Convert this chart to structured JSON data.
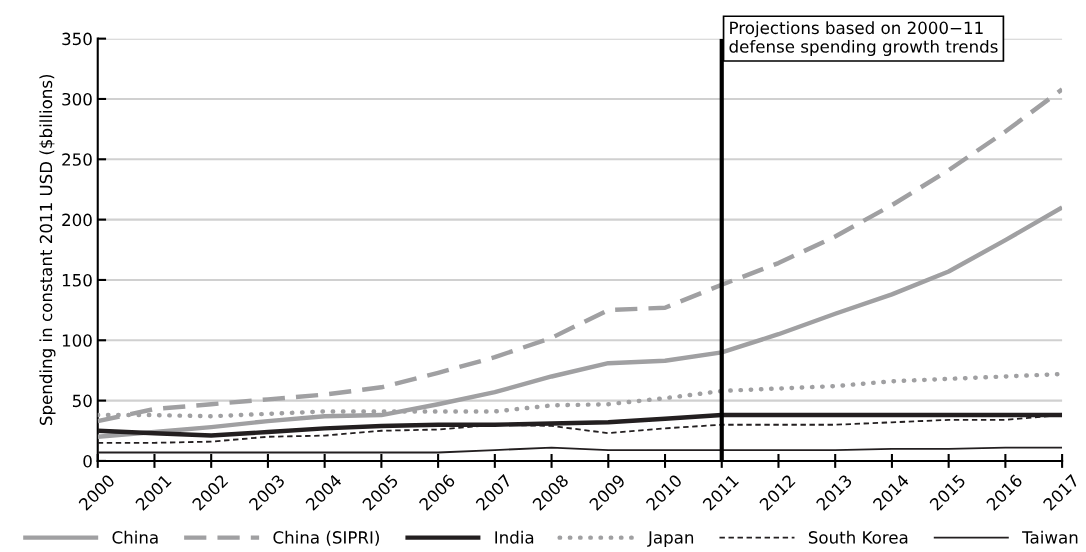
{
  "chart_data": {
    "type": "line",
    "ylabel": "Spending in constant 2011 USD ($billions)",
    "x": [
      2000,
      2001,
      2002,
      2003,
      2004,
      2005,
      2006,
      2007,
      2008,
      2009,
      2010,
      2011,
      2012,
      2013,
      2014,
      2015,
      2016,
      2017
    ],
    "xlim": [
      2000,
      2017
    ],
    "xticks": [
      2000,
      2001,
      2002,
      2003,
      2004,
      2005,
      2006,
      2007,
      2008,
      2009,
      2010,
      2011,
      2012,
      2013,
      2014,
      2015,
      2016,
      2017
    ],
    "ylim": [
      0,
      350
    ],
    "yticks": [
      0,
      50,
      100,
      150,
      200,
      250,
      300,
      350
    ],
    "grid": "y",
    "legend": "bottom",
    "series": [
      {
        "name": "China",
        "color": "#a0a0a2",
        "line_style": "solid",
        "values": [
          20,
          24,
          28,
          33,
          37,
          38,
          47,
          57,
          70,
          81,
          83,
          90,
          105,
          122,
          138,
          157,
          183,
          210
        ]
      },
      {
        "name": "China (SIPRI)",
        "color": "#a0a0a2",
        "line_style": "dashed",
        "values": [
          33,
          43,
          47,
          51,
          55,
          61,
          73,
          86,
          102,
          125,
          127,
          146,
          164,
          186,
          212,
          241,
          273,
          308
        ]
      },
      {
        "name": "India",
        "color": "#231f20",
        "line_style": "solid",
        "values": [
          25,
          23,
          21,
          24,
          27,
          29,
          30,
          30,
          31,
          32,
          35,
          38,
          38,
          38,
          38,
          38,
          38,
          38
        ]
      },
      {
        "name": "Japan",
        "color": "#a0a0a2",
        "line_style": "dotted",
        "values": [
          38,
          38,
          37,
          39,
          41,
          41,
          41,
          41,
          46,
          47,
          52,
          58,
          60,
          62,
          66,
          68,
          70,
          72
        ]
      },
      {
        "name": "South Korea",
        "color": "#231f20",
        "line_style": "dashed",
        "values": [
          15,
          15,
          16,
          20,
          21,
          25,
          26,
          30,
          29,
          23,
          27,
          30,
          30,
          30,
          32,
          34,
          34,
          38
        ]
      },
      {
        "name": "Taiwan",
        "color": "#231f20",
        "line_style": "solid",
        "values": [
          7,
          7,
          7,
          7,
          7,
          7,
          7,
          9,
          11,
          9,
          9,
          9,
          9,
          9,
          10,
          10,
          11,
          11
        ]
      }
    ],
    "ref_lines": [
      {
        "axis": "x",
        "value": 2011,
        "label": "Projections based on 2000−11\ndefense spending growth trends",
        "color": "#000000",
        "line_style": "solid"
      }
    ]
  }
}
